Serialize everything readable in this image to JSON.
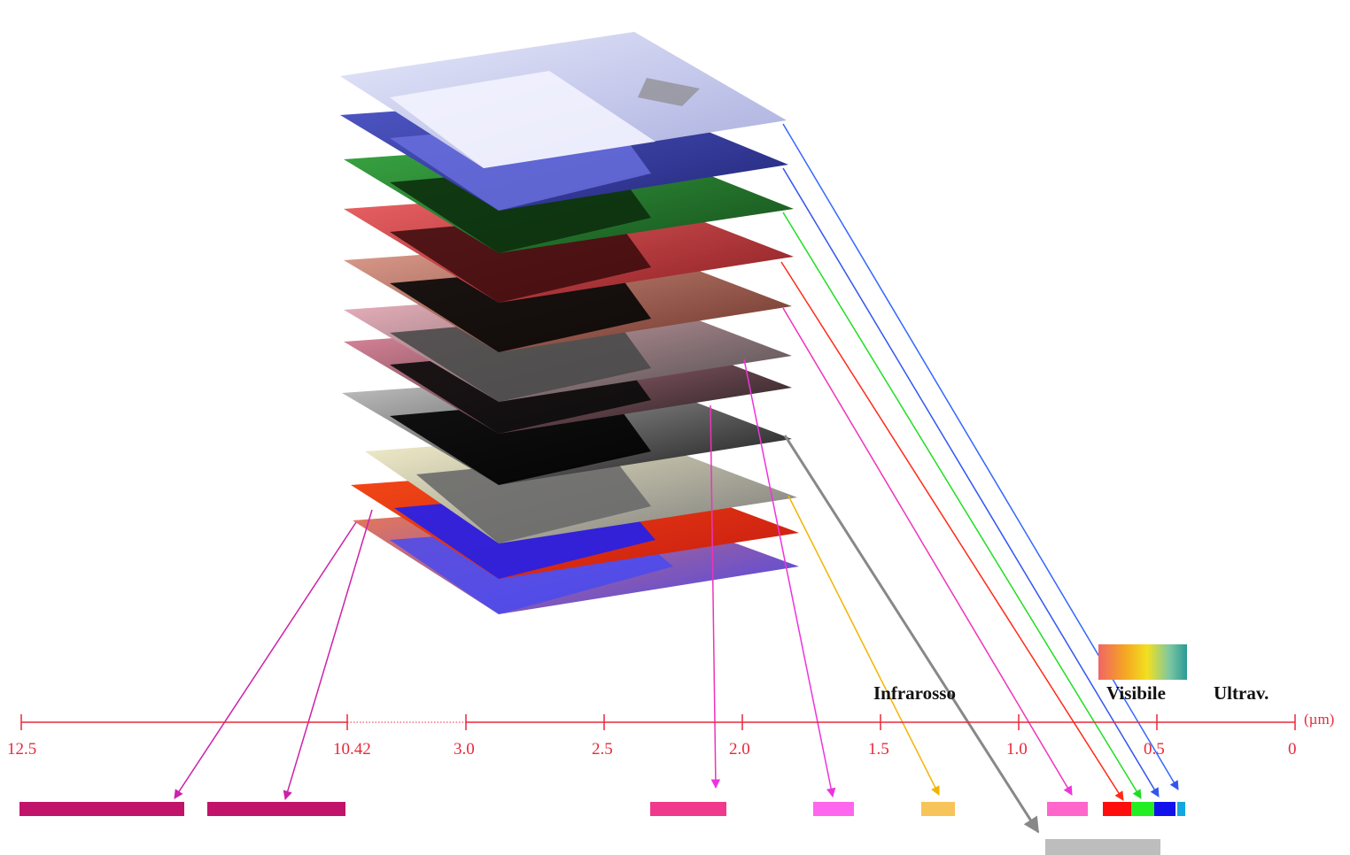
{
  "axis": {
    "unit": "(µm)",
    "ticks": [
      "12.5",
      "10.42",
      "3.0",
      "2.5",
      "2.0",
      "1.5",
      "1.0",
      "0.5",
      "0"
    ],
    "regions": {
      "infrared": "Infrarosso",
      "visible": "Visibile",
      "ultraviolet": "Ultrav."
    },
    "color": "#e8283a"
  },
  "layers": [
    {
      "name": "band-layer-1",
      "color": "#c8ccf0"
    },
    {
      "name": "band-layer-2",
      "color": "#3c44b8"
    },
    {
      "name": "band-layer-3",
      "color": "#2f9a38"
    },
    {
      "name": "band-layer-4",
      "color": "#e4575a"
    },
    {
      "name": "band-layer-5",
      "color": "#d99382"
    },
    {
      "name": "band-layer-6",
      "color": "#e8a4b2"
    },
    {
      "name": "band-layer-7",
      "color": "#d67a8e"
    },
    {
      "name": "band-layer-8",
      "color": "#9c9c9c"
    },
    {
      "name": "band-layer-9",
      "color": "#f3edc0"
    },
    {
      "name": "band-layer-10",
      "color": "#f04a18"
    },
    {
      "name": "band-layer-11",
      "color": "#f0744e"
    }
  ],
  "bands": [
    {
      "name": "band-thermal-1",
      "color": "#c2136b"
    },
    {
      "name": "band-thermal-2",
      "color": "#c2136b"
    },
    {
      "name": "band-swir-2",
      "color": "#f0398c"
    },
    {
      "name": "band-swir-1",
      "color": "#ff66ee"
    },
    {
      "name": "band-cirrus",
      "color": "#f7c45a"
    },
    {
      "name": "band-pan",
      "color": "#bdbdbd"
    },
    {
      "name": "band-nir",
      "color": "#ff66cc"
    },
    {
      "name": "band-red",
      "color": "#ff0d0d"
    },
    {
      "name": "band-green",
      "color": "#22ee22"
    },
    {
      "name": "band-blue",
      "color": "#1111ee"
    },
    {
      "name": "band-coastal",
      "color": "#11a8e0"
    }
  ],
  "arrow_colors": {
    "thermal": "#cc22aa",
    "swir": "#ee33dd",
    "cirrus": "#f2b400",
    "pan": "#888888",
    "nir": "#ee33bb",
    "red": "#ff2a1a",
    "green": "#22dd22",
    "blue": "#3355ee",
    "coastal": "#3366ff"
  },
  "visible_gradient": [
    "#f06565",
    "#f5a623",
    "#f2e020",
    "#7ec8a0",
    "#2a9a96"
  ]
}
